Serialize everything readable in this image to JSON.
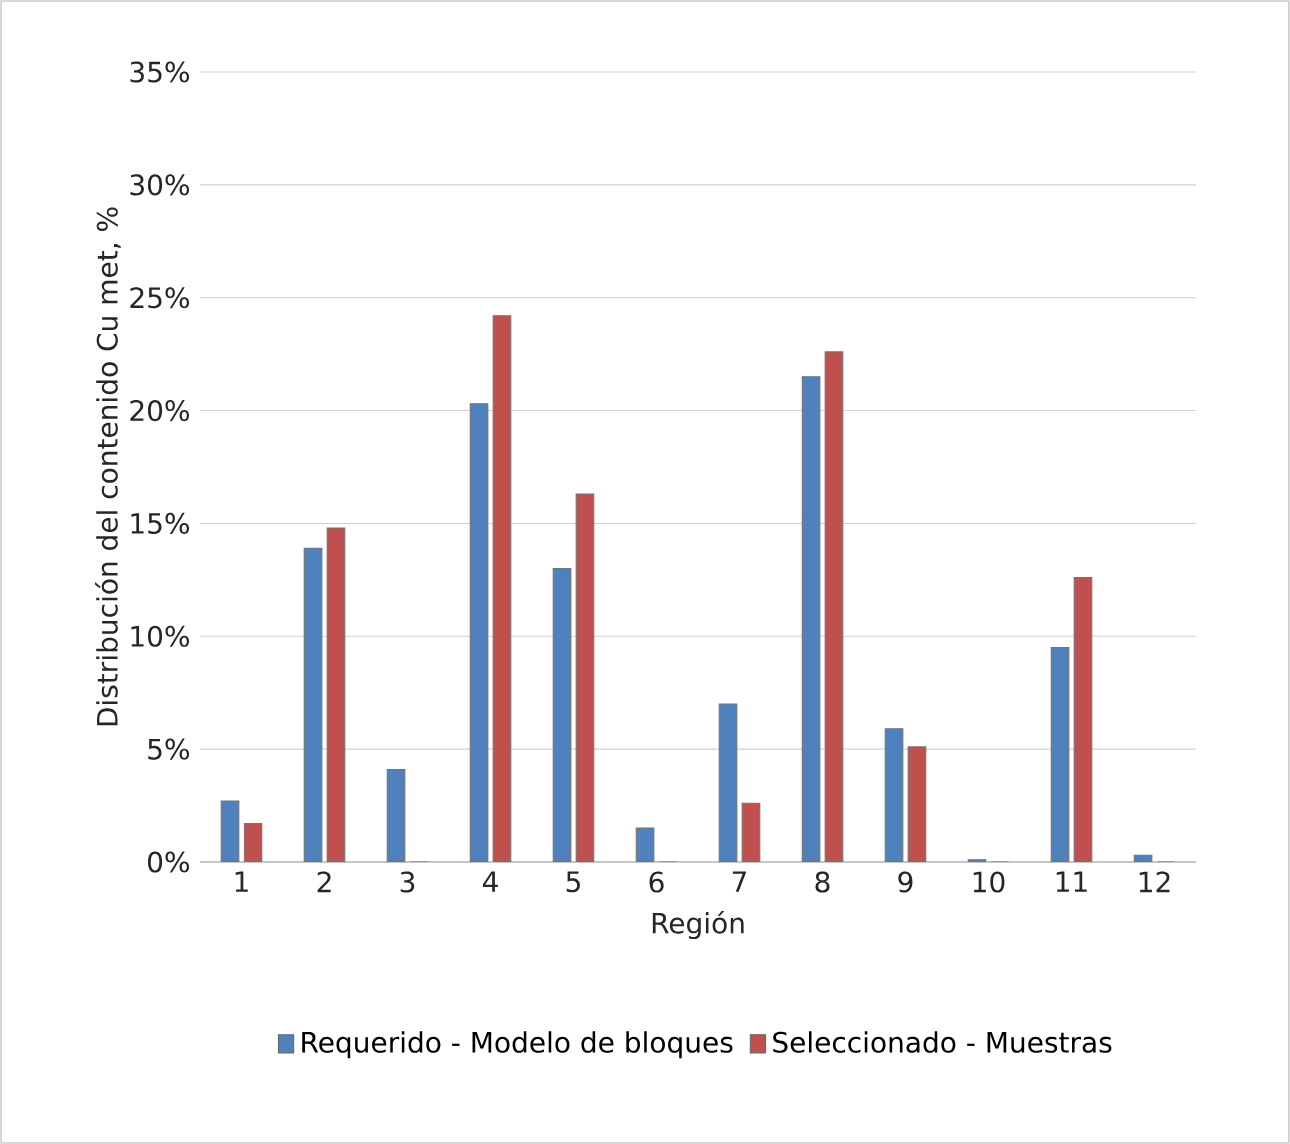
{
  "chart_data": {
    "type": "bar",
    "xlabel": "Región",
    "ylabel": "Distribución del contenido Cu met, %",
    "categories": [
      "1",
      "2",
      "3",
      "4",
      "5",
      "6",
      "7",
      "8",
      "9",
      "10",
      "11",
      "12"
    ],
    "series": [
      {
        "name": "Requerido - Modelo de bloques",
        "color": "#4f81bd",
        "values": [
          2.7,
          13.9,
          4.1,
          20.3,
          13.0,
          1.5,
          7.0,
          21.5,
          5.9,
          0.1,
          9.5,
          0.3
        ]
      },
      {
        "name": "Seleccionado - Muestras",
        "color": "#c0504d",
        "values": [
          1.7,
          14.8,
          0,
          24.2,
          16.3,
          0,
          2.6,
          22.6,
          5.1,
          0,
          12.6,
          0
        ]
      }
    ],
    "ylim": [
      0,
      35
    ],
    "yticks": [
      {
        "value": 0,
        "label": "0%"
      },
      {
        "value": 5,
        "label": "5%"
      },
      {
        "value": 10,
        "label": "10%"
      },
      {
        "value": 15,
        "label": "15%"
      },
      {
        "value": 20,
        "label": "20%"
      },
      {
        "value": 25,
        "label": "25%"
      },
      {
        "value": 30,
        "label": "30%"
      },
      {
        "value": 35,
        "label": "35%"
      }
    ],
    "grid": "y",
    "legend": "bottom"
  }
}
